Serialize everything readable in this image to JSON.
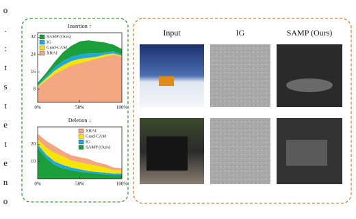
{
  "chart_data": [
    {
      "type": "area",
      "title": "Insertion ↑",
      "stacked": true,
      "legend": "upper left",
      "x": [
        0,
        10,
        20,
        30,
        40,
        50,
        60,
        70,
        80,
        90,
        100
      ],
      "series": [
        {
          "name": "XRAI",
          "color": "#f4a582",
          "values": [
            9,
            12,
            15,
            17,
            19,
            20,
            21,
            22,
            23,
            24,
            23
          ]
        },
        {
          "name": "Grad-CAM",
          "color": "#f5e600",
          "values": [
            0.5,
            1,
            1.5,
            2,
            2,
            2,
            1.5,
            1,
            1,
            0.5,
            0.5
          ]
        },
        {
          "name": "IG",
          "color": "#1fa8e0",
          "values": [
            0.5,
            1,
            1.5,
            2,
            2,
            2,
            2,
            1.5,
            1,
            1,
            0.5
          ]
        },
        {
          "name": "SAMP (Ours)",
          "color": "#1a9f3a",
          "values": [
            1,
            1.5,
            2.5,
            4,
            5,
            6,
            6,
            5.5,
            4.5,
            3,
            2.5
          ]
        }
      ],
      "xlim": [
        0,
        100
      ],
      "xticks": [
        {
          "value": 0,
          "label": "0%"
        },
        {
          "value": 50,
          "label": "50%"
        },
        {
          "value": 100,
          "label": "100%"
        }
      ],
      "ylim": [
        2,
        34
      ],
      "yticks": [
        8,
        16,
        24,
        32
      ]
    },
    {
      "type": "area",
      "title": "Deletion ↓",
      "stacked": true,
      "legend": "upper right",
      "x": [
        0,
        10,
        20,
        30,
        40,
        50,
        60,
        70,
        80,
        90,
        100
      ],
      "series": [
        {
          "name": "SAMP (Ours)",
          "color": "#1a9f3a",
          "values": [
            18,
            12,
            8,
            6,
            5,
            4,
            3.5,
            3,
            2.5,
            2,
            2
          ]
        },
        {
          "name": "IG",
          "color": "#1fa8e0",
          "values": [
            2,
            2,
            2,
            2,
            1.5,
            1.5,
            1,
            1,
            1,
            1,
            1
          ]
        },
        {
          "name": "Grad-CAM",
          "color": "#f5e600",
          "values": [
            3,
            4,
            5,
            5,
            4,
            4,
            4,
            3.5,
            3,
            2,
            2
          ]
        },
        {
          "name": "XRAI",
          "color": "#f4a582",
          "values": [
            3,
            4,
            4,
            3,
            3,
            3,
            3,
            2,
            2,
            1.5,
            1
          ]
        }
      ],
      "xlim": [
        0,
        100
      ],
      "xticks": [
        {
          "value": 0,
          "label": "0%"
        },
        {
          "value": 50,
          "label": "50%"
        },
        {
          "value": 100,
          "label": "100%"
        }
      ],
      "ylim": [
        0,
        30
      ],
      "yticks": [
        10,
        20
      ]
    }
  ],
  "figure": {
    "columns": [
      "Input",
      "IG",
      "SAMP (Ours)"
    ]
  },
  "margin_text": [
    "o",
    ".",
    ":",
    "t",
    "s",
    "t",
    "e",
    "t",
    "e",
    "n",
    "o"
  ]
}
